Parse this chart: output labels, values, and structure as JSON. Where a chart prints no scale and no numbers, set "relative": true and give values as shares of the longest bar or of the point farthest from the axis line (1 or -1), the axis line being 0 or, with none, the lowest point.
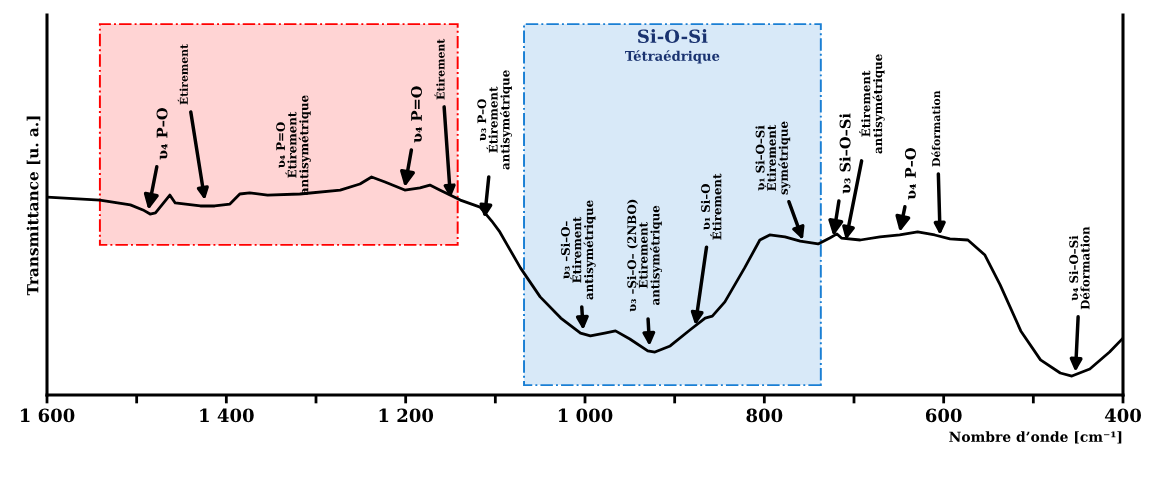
{
  "chart_data": {
    "type": "line",
    "relative": true,
    "xlabel": "Nombre d’onde [cm⁻¹]",
    "ylabel": "Transmittance [u. a.]",
    "xlim": [
      1600,
      400
    ],
    "xticks": [
      {
        "value": 1600,
        "label": "1 600"
      },
      {
        "value": 1500,
        "label": null
      },
      {
        "value": 1400,
        "label": "1 400"
      },
      {
        "value": 1300,
        "label": null
      },
      {
        "value": 1200,
        "label": "1 200"
      },
      {
        "value": 1100,
        "label": null
      },
      {
        "value": 1000,
        "label": "1 000"
      },
      {
        "value": 900,
        "label": null
      },
      {
        "value": 800,
        "label": "800"
      },
      {
        "value": 700,
        "label": null
      },
      {
        "value": 600,
        "label": "600"
      },
      {
        "value": 500,
        "label": null
      },
      {
        "value": 400,
        "label": "400"
      }
    ],
    "grid": false,
    "legend": false,
    "tick_labels": "x",
    "series": [
      {
        "color": "#000000",
        "x": [
          1600,
          1541,
          1507,
          1493,
          1485,
          1479,
          1463,
          1457,
          1429,
          1413,
          1396,
          1385,
          1374,
          1354,
          1318,
          1273,
          1251,
          1238,
          1223,
          1201,
          1184,
          1173,
          1162,
          1139,
          1117,
          1104,
          1095,
          1072,
          1050,
          1027,
          1005,
          994,
          978,
          966,
          950,
          930,
          922,
          905,
          883,
          866,
          858,
          844,
          822,
          805,
          794,
          777,
          760,
          740,
          727,
          719,
          714,
          693,
          671,
          649,
          629,
          610,
          593,
          573,
          554,
          537,
          514,
          492,
          470,
          457,
          437,
          415,
          400
        ],
        "values": [
          0.908,
          0.894,
          0.872,
          0.849,
          0.83,
          0.835,
          0.917,
          0.881,
          0.867,
          0.867,
          0.876,
          0.922,
          0.927,
          0.917,
          0.922,
          0.94,
          0.968,
          1,
          0.977,
          0.94,
          0.95,
          0.963,
          0.94,
          0.894,
          0.862,
          0.798,
          0.748,
          0.583,
          0.45,
          0.353,
          0.284,
          0.271,
          0.284,
          0.294,
          0.257,
          0.202,
          0.197,
          0.225,
          0.298,
          0.353,
          0.362,
          0.427,
          0.583,
          0.711,
          0.734,
          0.725,
          0.706,
          0.693,
          0.72,
          0.739,
          0.72,
          0.711,
          0.725,
          0.734,
          0.748,
          0.734,
          0.716,
          0.711,
          0.642,
          0.505,
          0.294,
          0.161,
          0.101,
          0.087,
          0.119,
          0.197,
          0.261
        ]
      }
    ],
    "bands": [
      {
        "axis": "x",
        "from": 1541,
        "to": 1142,
        "label": null,
        "color": "#ff0000"
      },
      {
        "axis": "x",
        "from": 1068,
        "to": 737,
        "label": "Si-O-Si\nTétraédrique",
        "color": "#1a7fd4"
      }
    ],
    "annotations": [
      {
        "text": "ʋ₄ P–O",
        "x": 1487,
        "y": 0.849
      },
      {
        "text": "Étirement",
        "x": 1424,
        "y": 0.894
      },
      "ʋ₄ P=O\nÉtirement\nantisymétrique",
      {
        "text": "ʋ₄ P=O",
        "x": 1201,
        "y": 0.954
      },
      {
        "text": "Étirement",
        "x": 1150,
        "y": 0.904
      },
      {
        "text": "ʋ₃ P–O\nÉtirement\nantisymétrique",
        "x": 1112,
        "y": 0.812
      },
      {
        "text": "ʋ₃ –Si–O–\nÉtirement\nantisymétrique",
        "x": 1002,
        "y": 0.298
      },
      {
        "text": "ʋ₃ –Si–O– (2NBO)\nÉtirement\nantisymétrique",
        "x": 928,
        "y": 0.225
      },
      {
        "text": "ʋ₁ Si–O\nÉtirement",
        "x": 877,
        "y": 0.32
      },
      {
        "text": "ʋ₁ Si–O–Si\nÉtirement\nsymétrique",
        "x": 757,
        "y": 0.711
      },
      {
        "text": "ʋ₃ Si–O–Si",
        "x": 723,
        "y": 0.729
      },
      {
        "text": "Étirement\nantisymétrique",
        "x": 709,
        "y": 0.711
      },
      {
        "text": "ʋ₄ P–O",
        "x": 649,
        "y": 0.748
      },
      {
        "text": "Déformation",
        "x": 604,
        "y": 0.734
      },
      {
        "text": "ʋ₄ Si–O–Si\nDéformation",
        "x": 453,
        "y": 0.106
      }
    ]
  }
}
